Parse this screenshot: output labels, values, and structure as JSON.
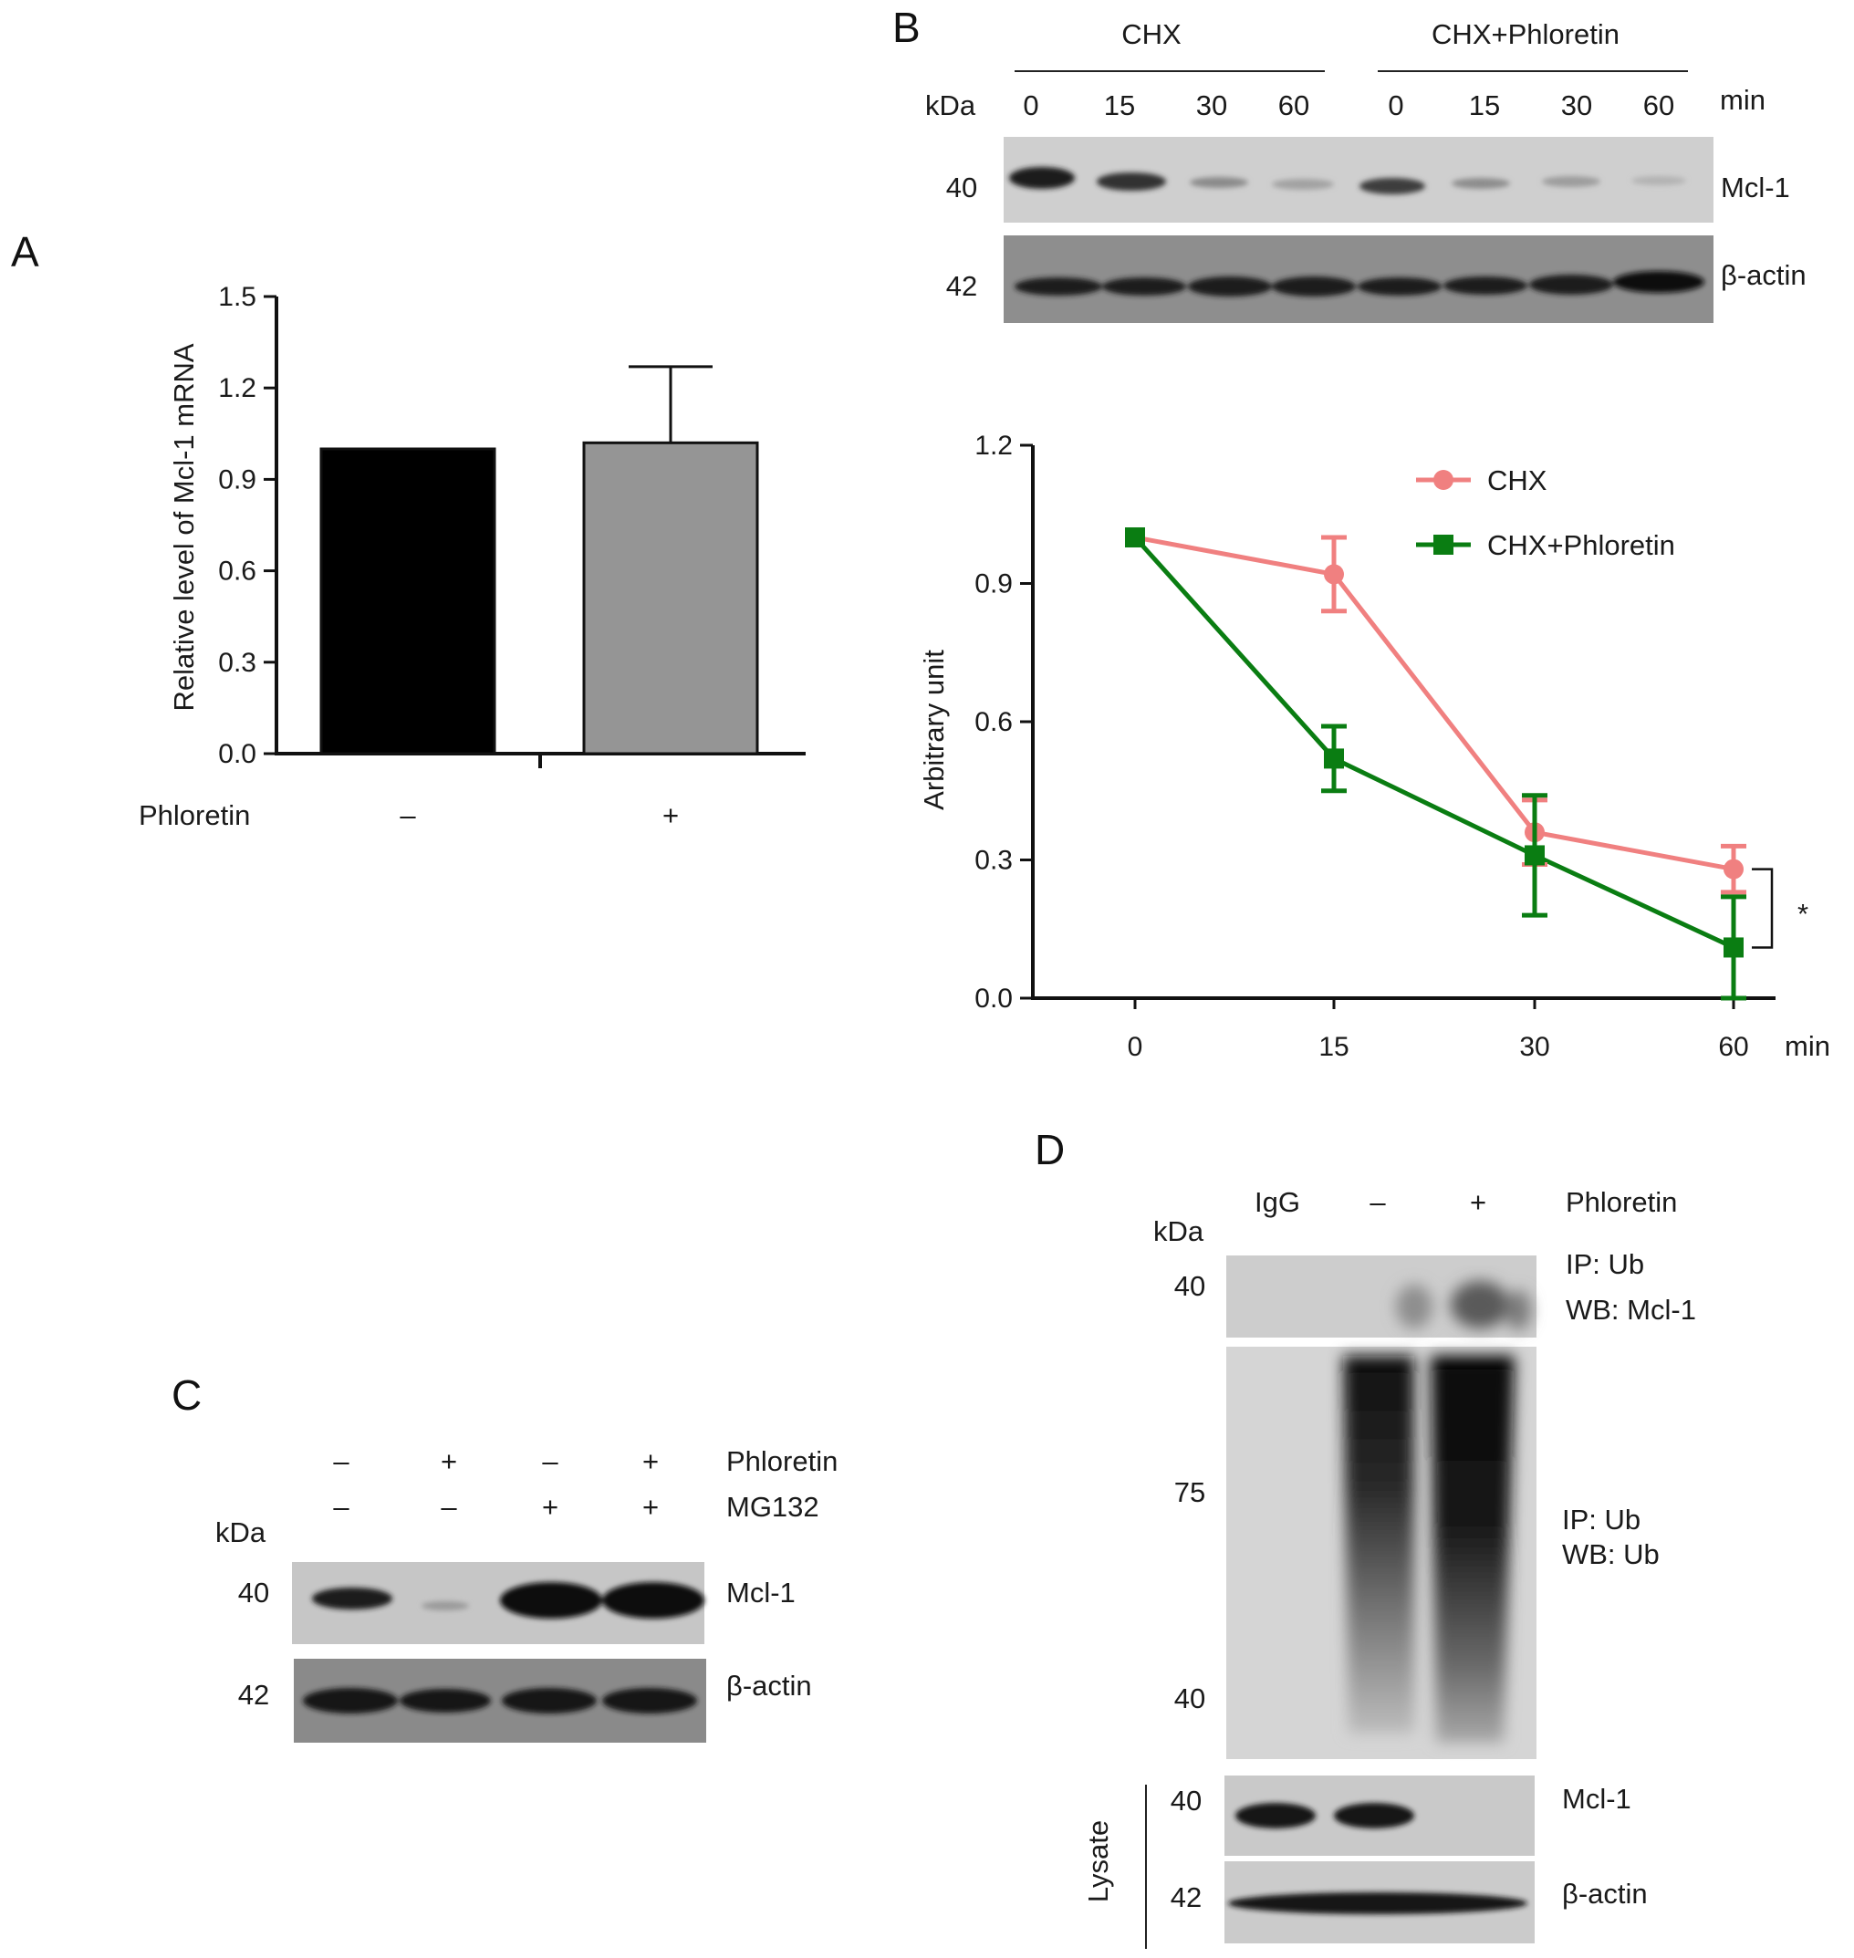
{
  "panels": {
    "a": "A",
    "b": "B",
    "c": "C",
    "d": "D"
  },
  "chart_data": [
    {
      "panel": "A",
      "type": "bar",
      "ylabel": "Relative level of Mcl-1 mRNA",
      "xlabel": "Phloretin",
      "categories": [
        "–",
        "+"
      ],
      "values": [
        1.0,
        1.02
      ],
      "errors": [
        0,
        0.25
      ],
      "colors": [
        "#000000",
        "#959595"
      ],
      "ylim": [
        0,
        1.5
      ],
      "yticks": [
        "0.0",
        "0.3",
        "0.6",
        "0.9",
        "1.2",
        "1.5"
      ],
      "grid": false
    },
    {
      "panel": "B",
      "type": "line",
      "ylabel": "Arbitrary unit",
      "x_unit": "min",
      "x": [
        0,
        15,
        30,
        60
      ],
      "xticks": [
        "0",
        "15",
        "30",
        "60"
      ],
      "ylim": [
        0,
        1.2
      ],
      "yticks": [
        "0.0",
        "0.3",
        "0.6",
        "0.9",
        "1.2"
      ],
      "legend_position": "top-right",
      "significance": "*",
      "grid": false,
      "series": [
        {
          "name": "CHX",
          "marker": "circle",
          "color": "#f08080",
          "values": [
            1.0,
            0.92,
            0.36,
            0.28
          ],
          "errors": [
            0,
            0.08,
            0.07,
            0.05
          ]
        },
        {
          "name": "CHX+Phloretin",
          "marker": "square",
          "color": "#0a7d12",
          "values": [
            1.0,
            0.52,
            0.31,
            0.11
          ],
          "errors": [
            0,
            0.07,
            0.13,
            0.11
          ]
        }
      ]
    }
  ],
  "blot_b": {
    "groups": [
      "CHX",
      "CHX+Phloretin"
    ],
    "kda_label": "kDa",
    "times": [
      "0",
      "15",
      "30",
      "60",
      "0",
      "15",
      "30",
      "60"
    ],
    "time_unit": "min",
    "rows": [
      {
        "kda": "40",
        "name": "Mcl-1"
      },
      {
        "kda": "42",
        "name": "β-actin"
      }
    ]
  },
  "blot_c": {
    "conditions": [
      {
        "name": "Phloretin",
        "values": [
          "–",
          "+",
          "–",
          "+"
        ]
      },
      {
        "name": "MG132",
        "values": [
          "–",
          "–",
          "+",
          "+"
        ]
      }
    ],
    "kda_label": "kDa",
    "rows": [
      {
        "kda": "40",
        "name": "Mcl-1"
      },
      {
        "kda": "42",
        "name": "β-actin"
      }
    ]
  },
  "blot_d": {
    "lanes": [
      "IgG",
      "–",
      "+"
    ],
    "condition": "Phloretin",
    "kda_label": "kDa",
    "ip_mcl1": {
      "kda": "40",
      "ip": "IP: Ub",
      "wb": "WB: Mcl-1"
    },
    "ip_ub": {
      "kda_top": "75",
      "kda_bottom": "40",
      "ip": "IP: Ub",
      "wb": "WB: Ub"
    },
    "lysate_label": "Lysate",
    "lysate_rows": [
      {
        "kda": "40",
        "name": "Mcl-1"
      },
      {
        "kda": "42",
        "name": "β-actin"
      }
    ]
  }
}
